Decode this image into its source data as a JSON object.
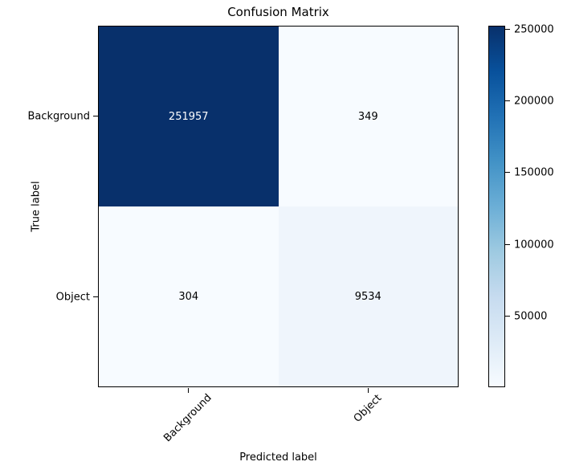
{
  "chart_data": {
    "type": "heatmap",
    "title": "Confusion Matrix",
    "xlabel": "Predicted label",
    "ylabel": "True label",
    "x_categories": [
      "Background",
      "Object"
    ],
    "y_categories": [
      "Background",
      "Object"
    ],
    "matrix": [
      [
        251957,
        349
      ],
      [
        304,
        9534
      ]
    ],
    "vmin": 304,
    "vmax": 251957,
    "colormap": "Blues",
    "colorbar_ticks": [
      50000,
      100000,
      150000,
      200000,
      250000
    ],
    "legend_position": "colorbar right",
    "grid": false
  },
  "colors": {
    "colormap_max": "#08306b",
    "colormap_min": "#f7fbff",
    "axis_line": "#000000",
    "figure_background": "#ffffff"
  },
  "cells": [
    {
      "value": 251957,
      "bg": "#08306b",
      "fg": "#ffffff"
    },
    {
      "value": 349,
      "bg": "#f7fbff",
      "fg": "#000000"
    },
    {
      "value": 304,
      "bg": "#f7fbff",
      "fg": "#000000"
    },
    {
      "value": 9534,
      "bg": "#eff5fc",
      "fg": "#000000"
    }
  ]
}
